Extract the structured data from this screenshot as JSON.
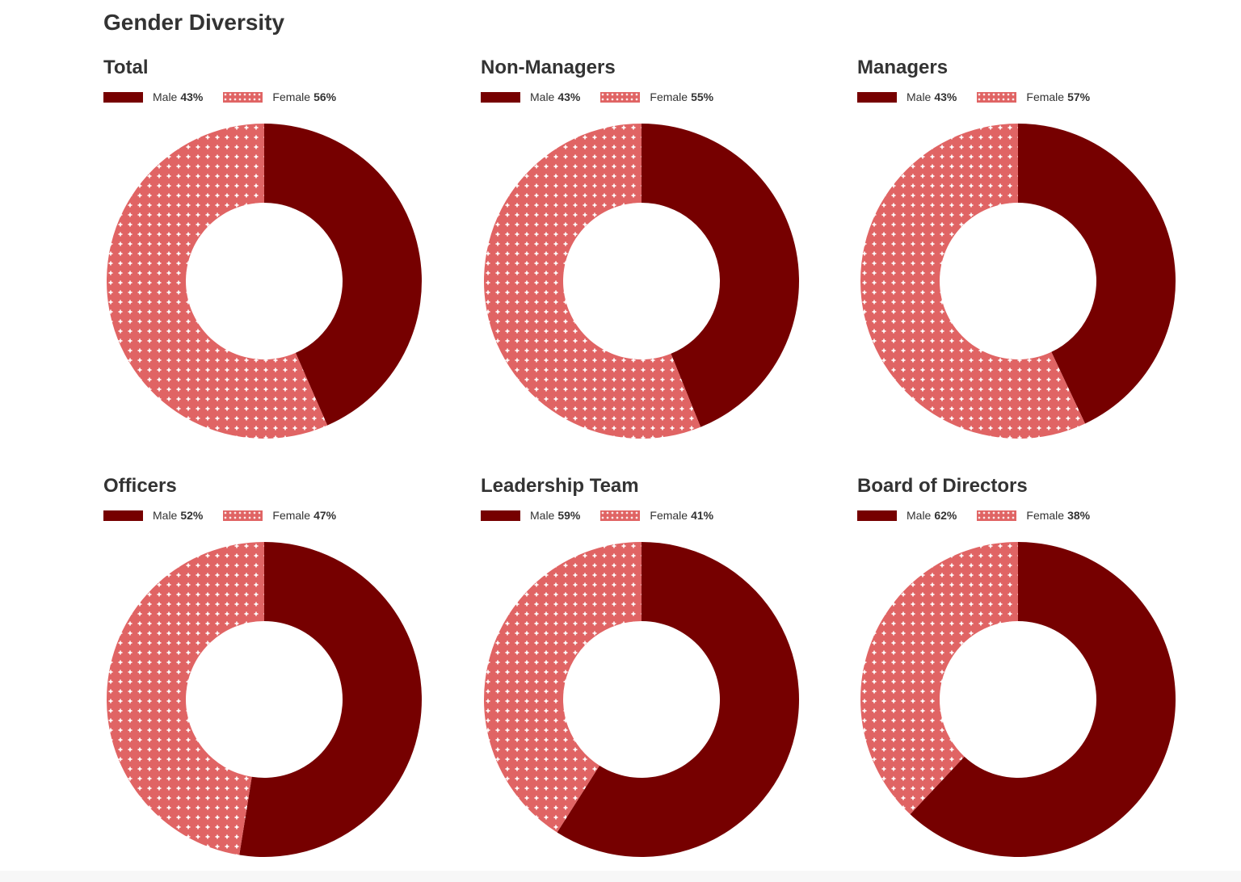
{
  "title": "Gender Diversity",
  "colors": {
    "male": "#760000",
    "female": "#e06464",
    "pattern": "#ffffff"
  },
  "chart_data": [
    {
      "type": "pie",
      "title": "Total",
      "categories": [
        "Male",
        "Female"
      ],
      "values": [
        43,
        56
      ],
      "labels": [
        "43%",
        "56%"
      ]
    },
    {
      "type": "pie",
      "title": "Non-Managers",
      "categories": [
        "Male",
        "Female"
      ],
      "values": [
        43,
        55
      ],
      "labels": [
        "43%",
        "55%"
      ]
    },
    {
      "type": "pie",
      "title": "Managers",
      "categories": [
        "Male",
        "Female"
      ],
      "values": [
        43,
        57
      ],
      "labels": [
        "43%",
        "57%"
      ]
    },
    {
      "type": "pie",
      "title": "Officers",
      "categories": [
        "Male",
        "Female"
      ],
      "values": [
        52,
        47
      ],
      "labels": [
        "52%",
        "47%"
      ]
    },
    {
      "type": "pie",
      "title": "Leadership Team",
      "categories": [
        "Male",
        "Female"
      ],
      "values": [
        59,
        41
      ],
      "labels": [
        "59%",
        "41%"
      ]
    },
    {
      "type": "pie",
      "title": "Board of Directors",
      "categories": [
        "Male",
        "Female"
      ],
      "values": [
        62,
        38
      ],
      "labels": [
        "62%",
        "38%"
      ]
    }
  ]
}
